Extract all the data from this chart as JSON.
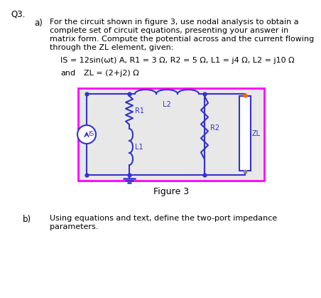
{
  "title_q": "Q3.",
  "part_a_label": "a)",
  "part_a_text_line1": "For the circuit shown in figure 3, use nodal analysis to obtain a",
  "part_a_text_line2": "complete set of circuit equations, presenting your answer in",
  "part_a_text_line3": "matrix form. Compute the potential across and the current flowing",
  "part_a_text_line4": "through the ZL element, given:",
  "formula_line": "IS = 12sin(ωt) A, R1 = 3 Ω, R2 = 5 Ω, L1 = j4 Ω, L2 = j10 Ω",
  "zl_line_and": "and",
  "zl_line_eq": "ZL = (2+j2) Ω",
  "figure_label": "Figure 3",
  "part_b_label": "b)",
  "part_b_text_line1": "Using equations and text, define the two-port impedance",
  "part_b_text_line2": "parameters.",
  "bg_color": "#e8e8e8",
  "circuit_border_color": "#ff00ff",
  "wire_color": "#3333cc",
  "zl_wire_color": "#cc3333",
  "zl_box_color": "#3333cc",
  "dot_color": "#3333cc",
  "orange_dot": "#ff6600"
}
